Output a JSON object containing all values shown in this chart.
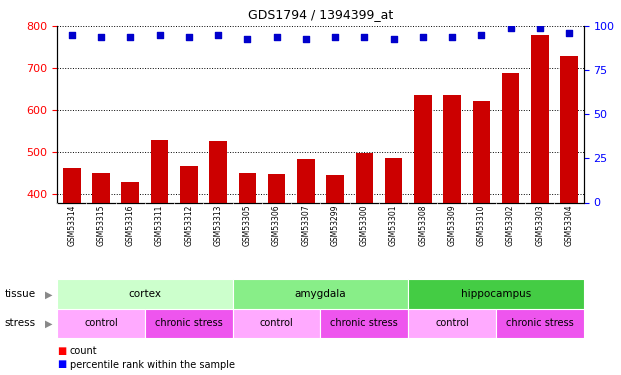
{
  "title": "GDS1794 / 1394399_at",
  "samples": [
    "GSM53314",
    "GSM53315",
    "GSM53316",
    "GSM53311",
    "GSM53312",
    "GSM53313",
    "GSM53305",
    "GSM53306",
    "GSM53307",
    "GSM53299",
    "GSM53300",
    "GSM53301",
    "GSM53308",
    "GSM53309",
    "GSM53310",
    "GSM53302",
    "GSM53303",
    "GSM53304"
  ],
  "counts": [
    462,
    450,
    428,
    530,
    468,
    527,
    450,
    448,
    483,
    445,
    498,
    485,
    635,
    637,
    622,
    688,
    778,
    730
  ],
  "percentile_ranks": [
    95,
    94,
    94,
    95,
    94,
    95,
    93,
    94,
    93,
    94,
    94,
    93,
    94,
    94,
    95,
    99,
    99,
    96
  ],
  "bar_color": "#cc0000",
  "dot_color": "#0000cc",
  "ylim_left": [
    380,
    800
  ],
  "ylim_right": [
    0,
    100
  ],
  "yticks_left": [
    400,
    500,
    600,
    700,
    800
  ],
  "yticks_right": [
    0,
    25,
    50,
    75,
    100
  ],
  "tissue_info": [
    {
      "label": "cortex",
      "start": 0,
      "end": 6,
      "color": "#ccffcc"
    },
    {
      "label": "amygdala",
      "start": 6,
      "end": 12,
      "color": "#88ee88"
    },
    {
      "label": "hippocampus",
      "start": 12,
      "end": 18,
      "color": "#44cc44"
    }
  ],
  "stress_info": [
    {
      "label": "control",
      "start": 0,
      "end": 3,
      "color": "#ffaaff"
    },
    {
      "label": "chronic stress",
      "start": 3,
      "end": 6,
      "color": "#ee55ee"
    },
    {
      "label": "control",
      "start": 6,
      "end": 9,
      "color": "#ffaaff"
    },
    {
      "label": "chronic stress",
      "start": 9,
      "end": 12,
      "color": "#ee55ee"
    },
    {
      "label": "control",
      "start": 12,
      "end": 15,
      "color": "#ffaaff"
    },
    {
      "label": "chronic stress",
      "start": 15,
      "end": 18,
      "color": "#ee55ee"
    }
  ],
  "xticklabel_bg": "#bbbbbb",
  "background_color": "#ffffff"
}
